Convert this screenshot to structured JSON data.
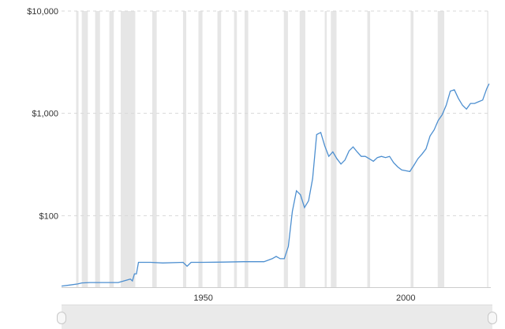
{
  "chart_data": {
    "type": "line",
    "title": "",
    "xlabel": "",
    "ylabel": "",
    "y_scale": "log",
    "ylim": [
      20,
      10000
    ],
    "xlim": [
      1915,
      2021
    ],
    "y_ticks": [
      {
        "value": 100,
        "label": "$100"
      },
      {
        "value": 1000,
        "label": "$1,000"
      },
      {
        "value": 10000,
        "label": "$10,000"
      }
    ],
    "x_ticks": [
      {
        "value": 1950,
        "label": "1950"
      },
      {
        "value": 2000,
        "label": "2000"
      }
    ],
    "grid": "horizontal dashed",
    "line_color": "#4d8fd0",
    "recession_color": "#e6e6e6",
    "recession_bands": [
      [
        1918.6,
        1919.2
      ],
      [
        1920.0,
        1921.5
      ],
      [
        1923.3,
        1924.5
      ],
      [
        1926.8,
        1927.9
      ],
      [
        1929.6,
        1933.2
      ],
      [
        1937.4,
        1938.5
      ],
      [
        1945.0,
        1945.8
      ],
      [
        1948.8,
        1949.8
      ],
      [
        1953.5,
        1954.4
      ],
      [
        1957.6,
        1958.3
      ],
      [
        1960.2,
        1961.1
      ],
      [
        1969.9,
        1970.9
      ],
      [
        1973.8,
        1975.2
      ],
      [
        1980.0,
        1980.5
      ],
      [
        1981.5,
        1982.9
      ],
      [
        1990.5,
        1991.2
      ],
      [
        2001.2,
        2001.9
      ],
      [
        2007.9,
        2009.5
      ],
      [
        2020.1,
        2020.4
      ]
    ],
    "series": [
      {
        "x": [
          1915,
          1917,
          1919,
          1920,
          1922,
          1925,
          1929,
          1932,
          1932.5,
          1933,
          1933.5,
          1934,
          1937,
          1940,
          1945,
          1946,
          1947,
          1950,
          1955,
          1960,
          1965,
          1967,
          1968,
          1969,
          1970,
          1971,
          1972,
          1973,
          1974,
          1975,
          1976,
          1977,
          1978,
          1979,
          1980,
          1981,
          1982,
          1983,
          1984,
          1985,
          1986,
          1987,
          1988,
          1989,
          1990,
          1991,
          1992,
          1993,
          1994,
          1995,
          1996,
          1997,
          1998,
          1999,
          2000,
          2001,
          2002,
          2003,
          2004,
          2005,
          2006,
          2007,
          2008,
          2009,
          2010,
          2011,
          2012,
          2013,
          2014,
          2015,
          2016,
          2017,
          2018,
          2019,
          2020,
          2020.6
        ],
        "values": [
          20.5,
          21,
          21.5,
          22,
          22.2,
          22.2,
          22.2,
          24,
          23,
          27,
          27,
          35,
          35,
          34.5,
          35,
          32,
          35,
          35,
          35.2,
          35.5,
          35.5,
          38,
          40,
          38,
          38,
          50,
          110,
          175,
          160,
          120,
          140,
          230,
          620,
          650,
          480,
          380,
          420,
          360,
          320,
          350,
          430,
          470,
          420,
          380,
          380,
          360,
          340,
          370,
          380,
          370,
          380,
          330,
          300,
          280,
          275,
          270,
          310,
          360,
          400,
          450,
          600,
          690,
          850,
          970,
          1200,
          1650,
          1700,
          1400,
          1200,
          1100,
          1250,
          1250,
          1300,
          1350,
          1750,
          1950
        ]
      }
    ]
  }
}
